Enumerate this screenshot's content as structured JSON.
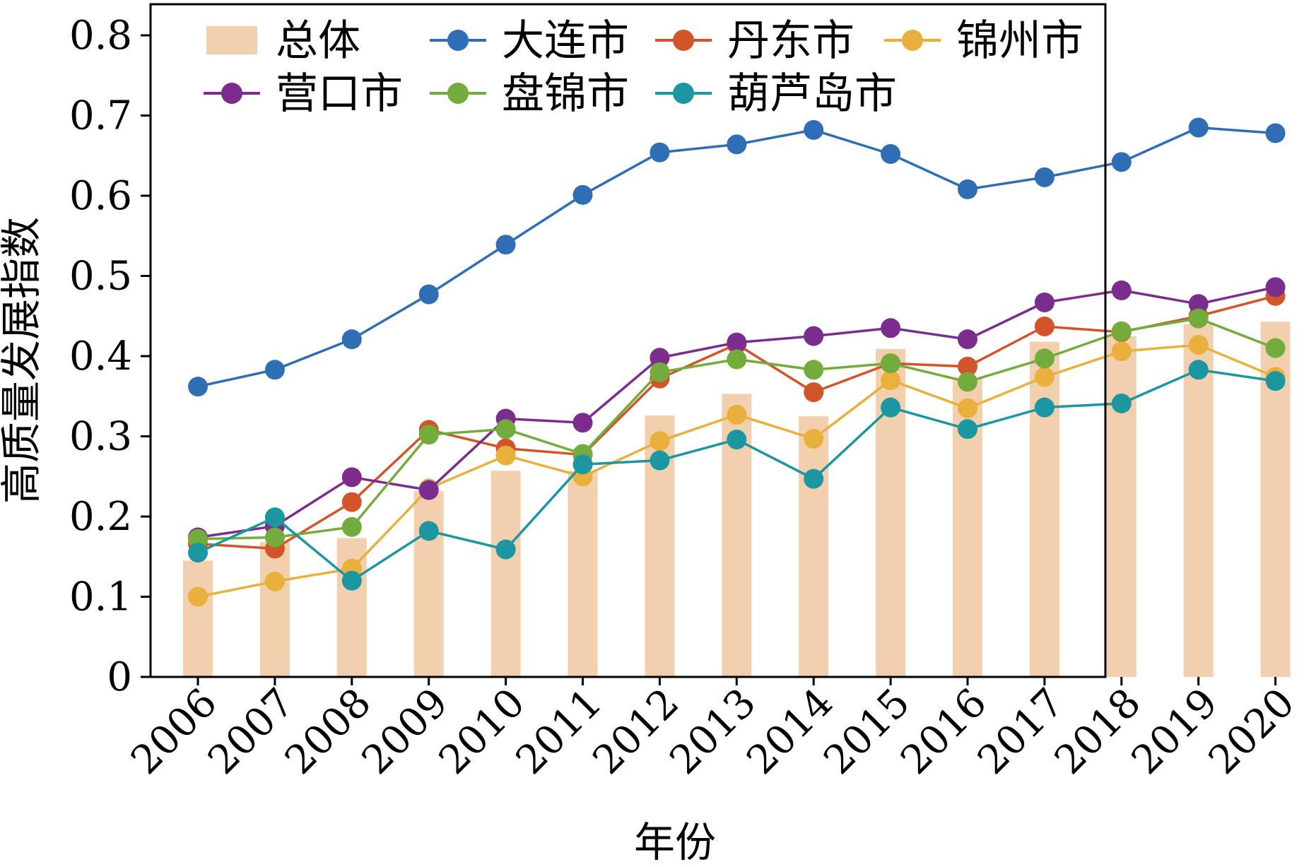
{
  "chart_data": {
    "type": "bar+line",
    "x": [
      "2006",
      "2007",
      "2008",
      "2009",
      "2010",
      "2011",
      "2012",
      "2013",
      "2014",
      "2015",
      "2016",
      "2017",
      "2018",
      "2019",
      "2020"
    ],
    "xlabel": "年份",
    "ylabel": "高质量发展指数",
    "ylim": [
      0,
      0.8
    ],
    "yticks": [
      "0",
      "0.1",
      "0.2",
      "0.3",
      "0.4",
      "0.5",
      "0.6",
      "0.7",
      "0.8"
    ],
    "grid": false,
    "legend_position": "top",
    "bars": {
      "name": "总体",
      "color": "#f2d0ae",
      "values": [
        0.145,
        0.168,
        0.173,
        0.232,
        0.257,
        0.257,
        0.326,
        0.353,
        0.325,
        0.409,
        0.372,
        0.418,
        0.425,
        0.44,
        0.443
      ]
    },
    "series": [
      {
        "name": "大连市",
        "color": "#2f6db5",
        "values": [
          0.362,
          0.383,
          0.421,
          0.477,
          0.539,
          0.601,
          0.654,
          0.664,
          0.682,
          0.652,
          0.608,
          0.623,
          0.642,
          0.685,
          0.678
        ]
      },
      {
        "name": "丹东市",
        "color": "#d2542a",
        "values": [
          0.166,
          0.16,
          0.218,
          0.308,
          0.285,
          0.277,
          0.372,
          0.415,
          0.355,
          0.391,
          0.387,
          0.437,
          0.43,
          0.45,
          0.475
        ]
      },
      {
        "name": "锦州市",
        "color": "#e9b03e",
        "values": [
          0.1,
          0.119,
          0.135,
          0.235,
          0.276,
          0.25,
          0.294,
          0.327,
          0.297,
          0.37,
          0.335,
          0.374,
          0.406,
          0.414,
          0.374
        ]
      },
      {
        "name": "营口市",
        "color": "#7b2d8e",
        "values": [
          0.174,
          0.188,
          0.249,
          0.233,
          0.322,
          0.317,
          0.398,
          0.417,
          0.425,
          0.435,
          0.421,
          0.467,
          0.482,
          0.465,
          0.486
        ]
      },
      {
        "name": "盘锦市",
        "color": "#73ac3c",
        "values": [
          0.172,
          0.174,
          0.187,
          0.302,
          0.309,
          0.278,
          0.38,
          0.396,
          0.383,
          0.391,
          0.368,
          0.397,
          0.431,
          0.447,
          0.41
        ]
      },
      {
        "name": "葫芦岛市",
        "color": "#1c97a1",
        "values": [
          0.155,
          0.199,
          0.12,
          0.182,
          0.159,
          0.265,
          0.27,
          0.296,
          0.247,
          0.336,
          0.309,
          0.336,
          0.341,
          0.383,
          0.369
        ]
      }
    ]
  }
}
